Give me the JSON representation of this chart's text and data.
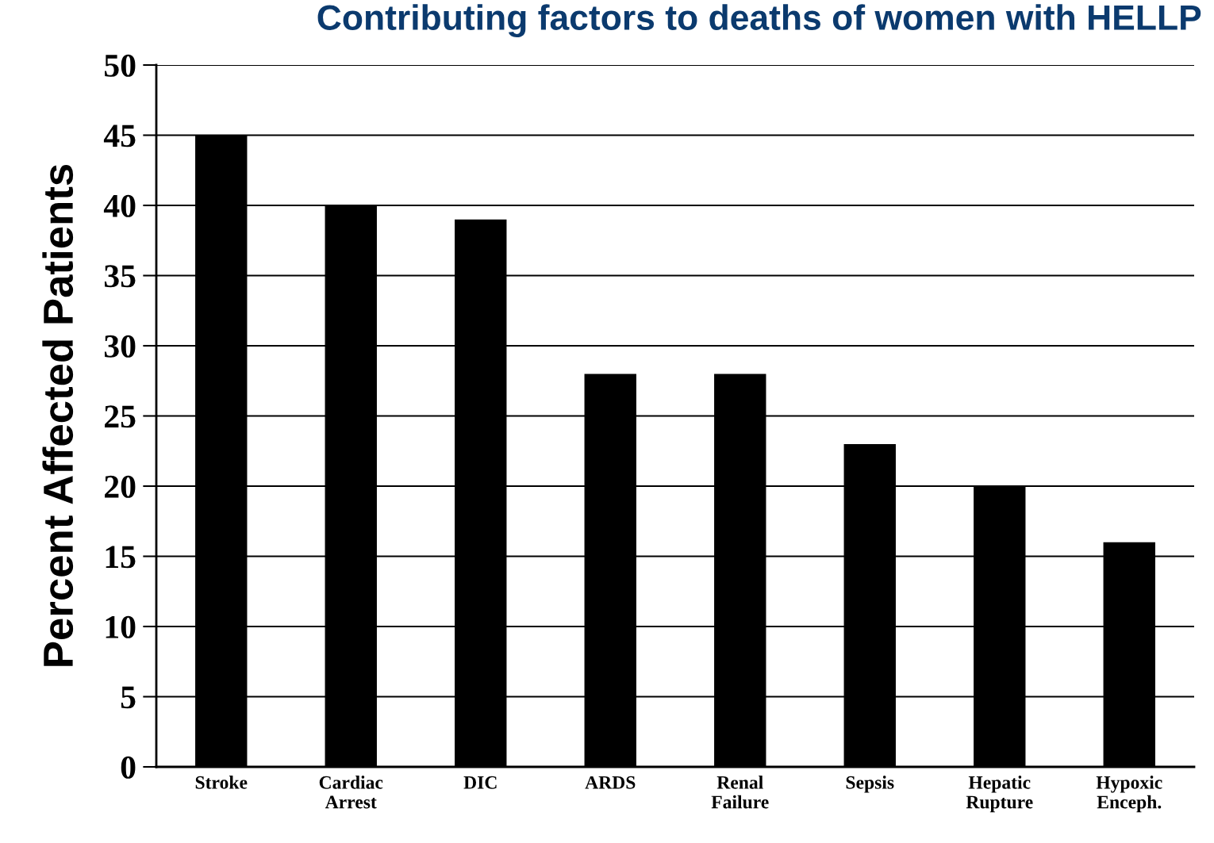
{
  "chart_data": {
    "type": "bar",
    "title": "Contributing factors to deaths of women with HELLP",
    "ylabel": "Percent Affected Patients",
    "categories": [
      "Stroke",
      "Cardiac\nArrest",
      "DIC",
      "ARDS",
      "Renal\nFailure",
      "Sepsis",
      "Hepatic\nRupture",
      "Hypoxic\nEnceph."
    ],
    "values": [
      45,
      40,
      39,
      28,
      28,
      23,
      20,
      16
    ],
    "color": "#000000",
    "ylim": [
      0,
      50
    ],
    "yticks": [
      0,
      5,
      10,
      15,
      20,
      25,
      30,
      35,
      40,
      45,
      50
    ],
    "grid": "y"
  }
}
